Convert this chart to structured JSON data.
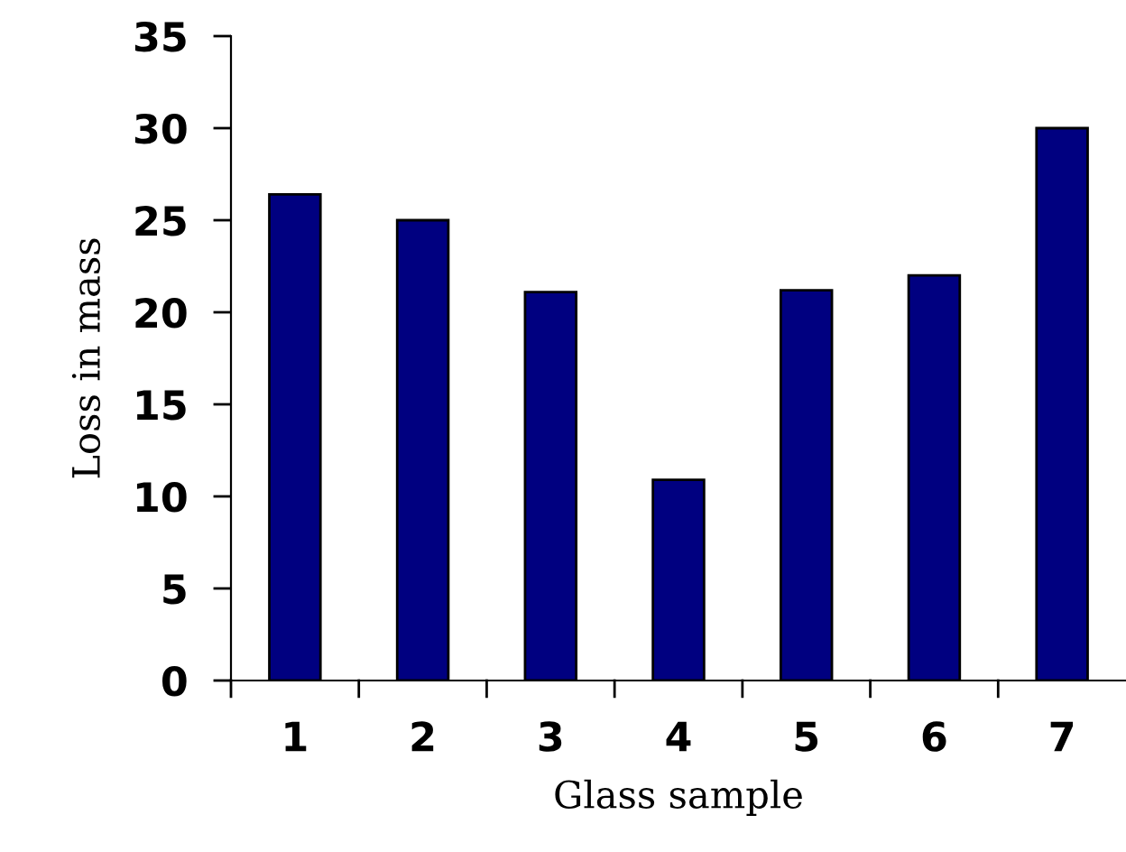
{
  "chart_data": {
    "type": "bar",
    "xlabel": "Glass sample",
    "ylabel": "Loss in mass",
    "categories": [
      "1",
      "2",
      "3",
      "4",
      "5",
      "6",
      "7"
    ],
    "values": [
      26.4,
      25.0,
      21.1,
      10.9,
      21.2,
      22.0,
      30.0
    ],
    "color": "#000080",
    "ylim": [
      0,
      35
    ],
    "yticks": [
      0,
      5,
      10,
      15,
      20,
      25,
      30,
      35
    ],
    "grid": false,
    "legend": false
  }
}
